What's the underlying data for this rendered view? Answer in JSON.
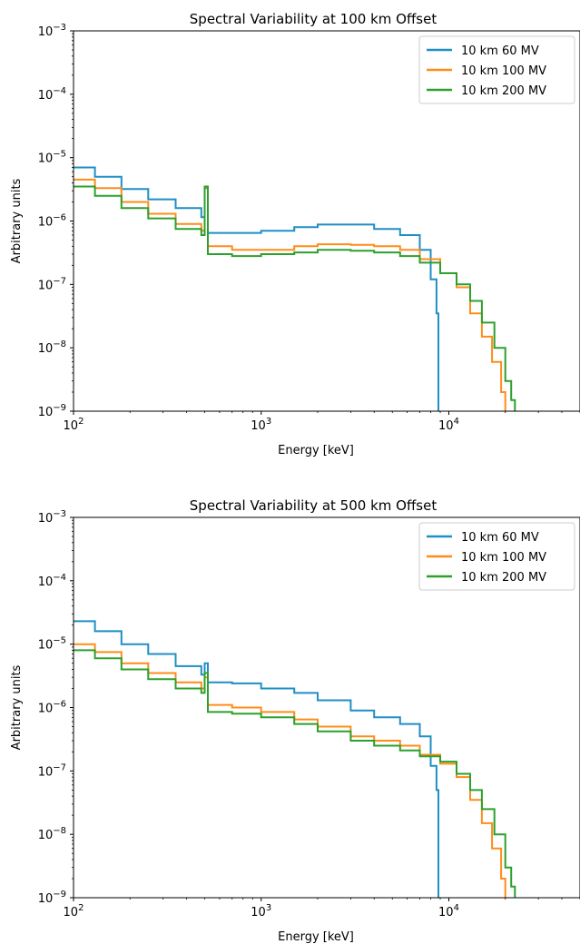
{
  "colors": {
    "60MV": "#1f8fc4",
    "100MV": "#ff8c1a",
    "200MV": "#2ca02c"
  },
  "chart_data": [
    {
      "type": "line",
      "title": "Spectral Variability at 100 km Offset",
      "xlabel": "Energy [keV]",
      "ylabel": "Arbitrary units",
      "xscale": "log",
      "yscale": "log",
      "xlim": [
        100,
        50000
      ],
      "ylim": [
        1e-09,
        0.001
      ],
      "xticks": [
        {
          "base": "10",
          "exp": "2"
        },
        {
          "base": "10",
          "exp": "3"
        },
        {
          "base": "10",
          "exp": "4"
        }
      ],
      "yticks": [
        {
          "base": "10",
          "exp": "−9"
        },
        {
          "base": "10",
          "exp": "−8"
        },
        {
          "base": "10",
          "exp": "−7"
        },
        {
          "base": "10",
          "exp": "−6"
        },
        {
          "base": "10",
          "exp": "−5"
        },
        {
          "base": "10",
          "exp": "−4"
        },
        {
          "base": "10",
          "exp": "−3"
        }
      ],
      "legend_position": "top-right",
      "series": [
        {
          "name": "10 km 60 MV",
          "color": "#1f8fc4",
          "points": [
            [
              100,
              7e-06
            ],
            [
              130,
              5e-06
            ],
            [
              180,
              3.2e-06
            ],
            [
              250,
              2.2e-06
            ],
            [
              350,
              1.6e-06
            ],
            [
              480,
              1.15e-06
            ],
            [
              500,
              3.3e-06
            ],
            [
              520,
              6.5e-07
            ],
            [
              700,
              6.5e-07
            ],
            [
              1000,
              7e-07
            ],
            [
              1500,
              8e-07
            ],
            [
              2000,
              8.8e-07
            ],
            [
              3000,
              8.8e-07
            ],
            [
              4000,
              7.5e-07
            ],
            [
              5500,
              6e-07
            ],
            [
              7000,
              3.5e-07
            ],
            [
              8000,
              1.2e-07
            ],
            [
              8600,
              3.5e-08
            ],
            [
              8800,
              1e-09
            ]
          ]
        },
        {
          "name": "10 km 100 MV",
          "color": "#ff8c1a",
          "points": [
            [
              100,
              4.5e-06
            ],
            [
              130,
              3.3e-06
            ],
            [
              180,
              2e-06
            ],
            [
              250,
              1.3e-06
            ],
            [
              350,
              9e-07
            ],
            [
              480,
              7e-07
            ],
            [
              500,
              3.4e-06
            ],
            [
              520,
              4e-07
            ],
            [
              700,
              3.5e-07
            ],
            [
              1000,
              3.5e-07
            ],
            [
              1500,
              4e-07
            ],
            [
              2000,
              4.3e-07
            ],
            [
              3000,
              4.2e-07
            ],
            [
              4000,
              4e-07
            ],
            [
              5500,
              3.5e-07
            ],
            [
              7000,
              2.5e-07
            ],
            [
              9000,
              1.5e-07
            ],
            [
              11000,
              9e-08
            ],
            [
              13000,
              3.5e-08
            ],
            [
              15000,
              1.5e-08
            ],
            [
              17000,
              6e-09
            ],
            [
              19000,
              2e-09
            ],
            [
              20000,
              1e-09
            ]
          ]
        },
        {
          "name": "10 km 200 MV",
          "color": "#2ca02c",
          "points": [
            [
              100,
              3.5e-06
            ],
            [
              130,
              2.5e-06
            ],
            [
              180,
              1.6e-06
            ],
            [
              250,
              1.1e-06
            ],
            [
              350,
              7.5e-07
            ],
            [
              480,
              6e-07
            ],
            [
              500,
              3.5e-06
            ],
            [
              520,
              3e-07
            ],
            [
              700,
              2.8e-07
            ],
            [
              1000,
              3e-07
            ],
            [
              1500,
              3.2e-07
            ],
            [
              2000,
              3.5e-07
            ],
            [
              3000,
              3.4e-07
            ],
            [
              4000,
              3.2e-07
            ],
            [
              5500,
              2.8e-07
            ],
            [
              7000,
              2.2e-07
            ],
            [
              9000,
              1.5e-07
            ],
            [
              11000,
              1e-07
            ],
            [
              13000,
              5.5e-08
            ],
            [
              15000,
              2.5e-08
            ],
            [
              17500,
              1e-08
            ],
            [
              20000,
              3e-09
            ],
            [
              21500,
              1.5e-09
            ],
            [
              22500,
              1e-09
            ]
          ]
        }
      ]
    },
    {
      "type": "line",
      "title": "Spectral Variability at 500 km Offset",
      "xlabel": "Energy [keV]",
      "ylabel": "Arbitrary units",
      "xscale": "log",
      "yscale": "log",
      "xlim": [
        100,
        50000
      ],
      "ylim": [
        1e-09,
        0.001
      ],
      "xticks": [
        {
          "base": "10",
          "exp": "2"
        },
        {
          "base": "10",
          "exp": "3"
        },
        {
          "base": "10",
          "exp": "4"
        }
      ],
      "yticks": [
        {
          "base": "10",
          "exp": "−9"
        },
        {
          "base": "10",
          "exp": "−8"
        },
        {
          "base": "10",
          "exp": "−7"
        },
        {
          "base": "10",
          "exp": "−6"
        },
        {
          "base": "10",
          "exp": "−5"
        },
        {
          "base": "10",
          "exp": "−4"
        },
        {
          "base": "10",
          "exp": "−3"
        }
      ],
      "legend_position": "top-right",
      "series": [
        {
          "name": "10 km 60 MV",
          "color": "#1f8fc4",
          "points": [
            [
              100,
              2.3e-05
            ],
            [
              130,
              1.6e-05
            ],
            [
              180,
              1e-05
            ],
            [
              250,
              7e-06
            ],
            [
              350,
              4.5e-06
            ],
            [
              480,
              3.3e-06
            ],
            [
              500,
              5e-06
            ],
            [
              520,
              2.5e-06
            ],
            [
              700,
              2.4e-06
            ],
            [
              1000,
              2e-06
            ],
            [
              1500,
              1.7e-06
            ],
            [
              2000,
              1.3e-06
            ],
            [
              3000,
              9e-07
            ],
            [
              4000,
              7e-07
            ],
            [
              5500,
              5.5e-07
            ],
            [
              7000,
              3.5e-07
            ],
            [
              8000,
              1.2e-07
            ],
            [
              8600,
              5e-08
            ],
            [
              8800,
              1e-09
            ]
          ]
        },
        {
          "name": "10 km 100 MV",
          "color": "#ff8c1a",
          "points": [
            [
              100,
              1e-05
            ],
            [
              130,
              7.5e-06
            ],
            [
              180,
              5e-06
            ],
            [
              250,
              3.5e-06
            ],
            [
              350,
              2.5e-06
            ],
            [
              480,
              2e-06
            ],
            [
              500,
              3e-06
            ],
            [
              520,
              1.1e-06
            ],
            [
              700,
              1e-06
            ],
            [
              1000,
              8.5e-07
            ],
            [
              1500,
              6.5e-07
            ],
            [
              2000,
              5e-07
            ],
            [
              3000,
              3.5e-07
            ],
            [
              4000,
              3e-07
            ],
            [
              5500,
              2.5e-07
            ],
            [
              7000,
              1.8e-07
            ],
            [
              9000,
              1.3e-07
            ],
            [
              11000,
              8e-08
            ],
            [
              13000,
              3.5e-08
            ],
            [
              15000,
              1.5e-08
            ],
            [
              17000,
              6e-09
            ],
            [
              19000,
              2e-09
            ],
            [
              20000,
              1e-09
            ]
          ]
        },
        {
          "name": "10 km 200 MV",
          "color": "#2ca02c",
          "points": [
            [
              100,
              8e-06
            ],
            [
              130,
              6e-06
            ],
            [
              180,
              4e-06
            ],
            [
              250,
              2.8e-06
            ],
            [
              350,
              2e-06
            ],
            [
              480,
              1.7e-06
            ],
            [
              500,
              3.5e-06
            ],
            [
              520,
              8.5e-07
            ],
            [
              700,
              8e-07
            ],
            [
              1000,
              7e-07
            ],
            [
              1500,
              5.5e-07
            ],
            [
              2000,
              4.2e-07
            ],
            [
              3000,
              3e-07
            ],
            [
              4000,
              2.5e-07
            ],
            [
              5500,
              2.1e-07
            ],
            [
              7000,
              1.7e-07
            ],
            [
              9000,
              1.4e-07
            ],
            [
              11000,
              9e-08
            ],
            [
              13000,
              5e-08
            ],
            [
              15000,
              2.5e-08
            ],
            [
              17500,
              1e-08
            ],
            [
              20000,
              3e-09
            ],
            [
              21500,
              1.5e-09
            ],
            [
              22500,
              1e-09
            ]
          ]
        }
      ]
    }
  ]
}
